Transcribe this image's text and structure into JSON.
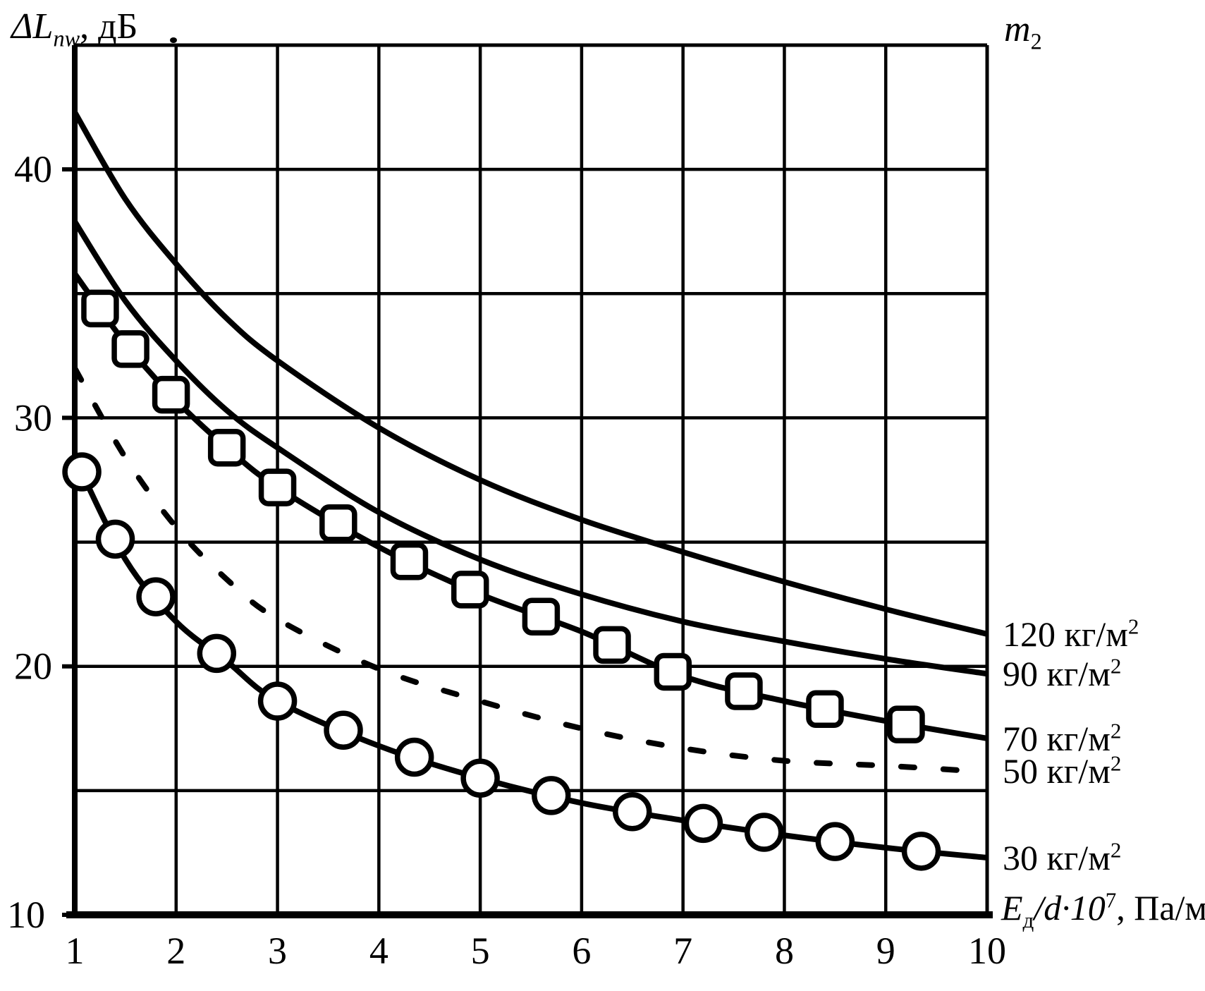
{
  "titles": {
    "y_axis": {
      "main": "ΔL",
      "sub": "nw",
      "rest": ", дБ"
    },
    "right_column": {
      "main": "m",
      "sub": "2"
    },
    "x_unit": {
      "sym": "E",
      "sym_sub": "д",
      "mid": "/d·10",
      "exp": "7",
      "rest": ", Па/м"
    }
  },
  "y_axis": {
    "tick_labels": [
      "40",
      "30",
      "20",
      "10"
    ],
    "tick_values": [
      40,
      30,
      20,
      10
    ]
  },
  "x_axis": {
    "tick_labels": [
      "1",
      "2",
      "3",
      "4",
      "5",
      "6",
      "7",
      "8",
      "9",
      "10"
    ],
    "tick_values": [
      1,
      2,
      3,
      4,
      5,
      6,
      7,
      8,
      9,
      10
    ]
  },
  "colors": {
    "ink": "#000000",
    "paper": "#ffffff"
  },
  "chart_data": {
    "type": "line",
    "title": "",
    "xlabel": "Eд/d·10⁷, Па/м",
    "ylabel": "ΔLnw, дБ",
    "right_header": "m₂",
    "xlim": [
      1,
      10
    ],
    "ylim": [
      10,
      45
    ],
    "grid": {
      "on": true,
      "x_step": 1,
      "y_step": 5
    },
    "legend_position": "right-margin",
    "series": [
      {
        "key": "120",
        "name": "120 кг/м²",
        "label": {
          "value": "120",
          "unit": " кг/м",
          "sup": "2"
        },
        "style": "solid",
        "marker": "none",
        "x": [
          1,
          1.5,
          2,
          2.5,
          3,
          4,
          5,
          6,
          7,
          8,
          9,
          10
        ],
        "y": [
          42.3,
          38.8,
          36.2,
          34.0,
          32.3,
          29.6,
          27.5,
          25.9,
          24.6,
          23.4,
          22.3,
          21.3
        ]
      },
      {
        "key": "90",
        "name": "90 кг/м²",
        "label": {
          "value": "90",
          "unit": " кг/м",
          "sup": "2"
        },
        "style": "solid",
        "marker": "none",
        "x": [
          1,
          1.5,
          2,
          2.5,
          3,
          4,
          5,
          6,
          7,
          8,
          9,
          10
        ],
        "y": [
          37.9,
          34.7,
          32.3,
          30.3,
          28.8,
          26.2,
          24.3,
          22.9,
          21.8,
          21.0,
          20.3,
          19.7
        ]
      },
      {
        "key": "70",
        "name": "70 кг/м²",
        "label": {
          "value": "70",
          "unit": " кг/м",
          "sup": "2"
        },
        "style": "solid",
        "marker": "square",
        "marker_x": [
          1.25,
          1.55,
          1.95,
          2.5,
          3.0,
          3.6,
          4.3,
          4.9,
          5.6,
          6.3,
          6.9,
          7.6,
          8.4,
          9.2
        ],
        "x": [
          1,
          1.5,
          2,
          2.5,
          3,
          4,
          5,
          6,
          7,
          8,
          9,
          10
        ],
        "y": [
          35.8,
          33.0,
          30.7,
          28.8,
          27.2,
          24.8,
          22.9,
          21.4,
          19.6,
          18.6,
          17.8,
          17.1
        ]
      },
      {
        "key": "50",
        "name": "50 кг/м²",
        "label": {
          "value": "50",
          "unit": " кг/м",
          "sup": "2"
        },
        "style": "dashed",
        "marker": "none",
        "x": [
          1,
          1.5,
          2,
          2.5,
          3,
          4,
          5,
          6,
          7,
          8,
          9,
          9.8
        ],
        "y": [
          32.0,
          28.4,
          25.6,
          23.5,
          21.9,
          19.9,
          18.6,
          17.5,
          16.7,
          16.2,
          16.0,
          15.8
        ]
      },
      {
        "key": "30",
        "name": "30 кг/м²",
        "label": {
          "value": "30",
          "unit": " кг/м",
          "sup": "2"
        },
        "style": "solid",
        "marker": "circle",
        "marker_x": [
          1.07,
          1.4,
          1.8,
          2.4,
          3.0,
          3.65,
          4.35,
          5.0,
          5.7,
          6.5,
          7.2,
          7.8,
          8.5,
          9.35
        ],
        "x": [
          1,
          1.5,
          2,
          2.5,
          3,
          4,
          5,
          6,
          7,
          8,
          9,
          10
        ],
        "y": [
          28.4,
          24.3,
          21.8,
          20.2,
          18.6,
          16.8,
          15.5,
          14.5,
          13.8,
          13.2,
          12.7,
          12.3
        ]
      }
    ]
  }
}
